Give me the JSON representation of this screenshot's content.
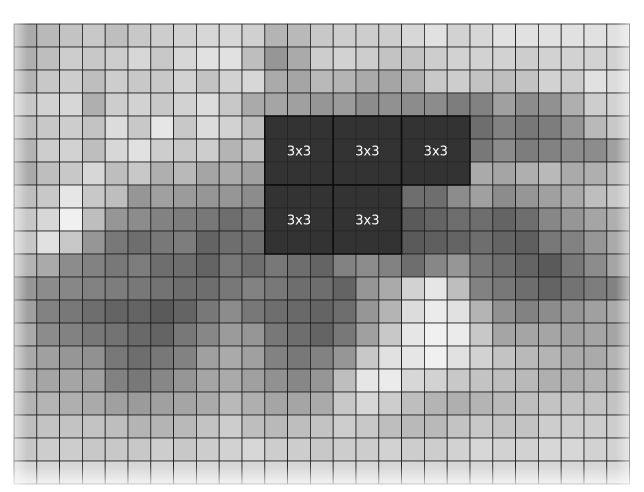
{
  "grid": {
    "rows": 20,
    "cols": 27,
    "line_color": "#1a1a1a",
    "highlight_color": "#333333",
    "values": [
      [
        170,
        185,
        195,
        200,
        190,
        200,
        205,
        210,
        215,
        215,
        208,
        180,
        185,
        200,
        205,
        205,
        205,
        215,
        225,
        210,
        215,
        225,
        225,
        225,
        225,
        225,
        225
      ],
      [
        175,
        190,
        205,
        200,
        205,
        215,
        200,
        215,
        225,
        225,
        190,
        150,
        170,
        205,
        210,
        205,
        195,
        195,
        205,
        210,
        210,
        210,
        205,
        210,
        210,
        210,
        210
      ],
      [
        180,
        200,
        205,
        190,
        205,
        200,
        200,
        210,
        195,
        210,
        215,
        170,
        165,
        185,
        180,
        170,
        165,
        175,
        200,
        205,
        195,
        190,
        195,
        210,
        205,
        225,
        220
      ],
      [
        200,
        210,
        215,
        175,
        205,
        210,
        200,
        210,
        220,
        200,
        170,
        165,
        160,
        150,
        155,
        140,
        145,
        140,
        140,
        125,
        130,
        160,
        140,
        145,
        175,
        205,
        210
      ],
      [
        190,
        200,
        205,
        195,
        220,
        200,
        230,
        200,
        220,
        210,
        190,
        150,
        160,
        165,
        165,
        140,
        145,
        140,
        130,
        120,
        110,
        130,
        120,
        125,
        150,
        185,
        200
      ],
      [
        180,
        205,
        210,
        190,
        215,
        225,
        205,
        200,
        205,
        180,
        190,
        150,
        150,
        140,
        130,
        140,
        150,
        130,
        120,
        130,
        120,
        140,
        125,
        130,
        140,
        140,
        160
      ],
      [
        170,
        190,
        200,
        215,
        190,
        200,
        175,
        185,
        165,
        170,
        160,
        120,
        130,
        140,
        130,
        120,
        130,
        140,
        150,
        180,
        170,
        165,
        175,
        185,
        170,
        175,
        190
      ],
      [
        190,
        200,
        230,
        200,
        190,
        150,
        160,
        155,
        150,
        150,
        140,
        120,
        125,
        110,
        120,
        120,
        110,
        110,
        110,
        140,
        160,
        140,
        150,
        160,
        170,
        190,
        200
      ],
      [
        200,
        215,
        240,
        190,
        150,
        140,
        130,
        125,
        120,
        110,
        120,
        110,
        110,
        100,
        110,
        100,
        100,
        90,
        100,
        110,
        110,
        100,
        110,
        135,
        150,
        165,
        175
      ],
      [
        200,
        225,
        200,
        150,
        120,
        110,
        120,
        125,
        100,
        110,
        110,
        100,
        95,
        100,
        100,
        110,
        95,
        90,
        95,
        100,
        110,
        100,
        95,
        120,
        130,
        150,
        170
      ],
      [
        180,
        170,
        140,
        130,
        120,
        125,
        110,
        110,
        100,
        120,
        110,
        120,
        110,
        100,
        130,
        140,
        130,
        110,
        135,
        150,
        120,
        110,
        100,
        90,
        120,
        140,
        165
      ],
      [
        150,
        140,
        135,
        130,
        125,
        120,
        115,
        110,
        110,
        120,
        130,
        120,
        110,
        110,
        100,
        150,
        170,
        210,
        230,
        190,
        130,
        120,
        110,
        100,
        115,
        125,
        130
      ],
      [
        160,
        130,
        120,
        110,
        100,
        100,
        90,
        100,
        120,
        140,
        120,
        110,
        105,
        100,
        110,
        150,
        180,
        220,
        235,
        225,
        180,
        145,
        130,
        140,
        150,
        160,
        170
      ],
      [
        170,
        140,
        130,
        120,
        115,
        105,
        100,
        120,
        135,
        155,
        150,
        120,
        110,
        100,
        120,
        160,
        200,
        230,
        240,
        235,
        200,
        165,
        165,
        165,
        160,
        165,
        165
      ],
      [
        170,
        160,
        150,
        145,
        120,
        110,
        120,
        130,
        160,
        170,
        160,
        130,
        120,
        130,
        150,
        200,
        225,
        230,
        240,
        225,
        210,
        195,
        185,
        180,
        170,
        170,
        180
      ],
      [
        175,
        165,
        165,
        160,
        130,
        120,
        135,
        150,
        165,
        170,
        160,
        145,
        135,
        150,
        190,
        230,
        235,
        215,
        210,
        200,
        195,
        190,
        185,
        175,
        175,
        180,
        180
      ],
      [
        180,
        180,
        175,
        170,
        160,
        155,
        160,
        165,
        170,
        185,
        175,
        165,
        165,
        170,
        200,
        215,
        205,
        190,
        180,
        175,
        180,
        185,
        190,
        195,
        195,
        195,
        195
      ],
      [
        190,
        195,
        195,
        195,
        190,
        180,
        180,
        185,
        195,
        205,
        190,
        185,
        190,
        195,
        205,
        200,
        190,
        185,
        185,
        195,
        200,
        195,
        195,
        205,
        205,
        205,
        205
      ],
      [
        200,
        205,
        205,
        200,
        200,
        200,
        205,
        200,
        205,
        210,
        215,
        205,
        205,
        200,
        205,
        205,
        210,
        205,
        205,
        210,
        215,
        210,
        210,
        215,
        215,
        210,
        210
      ],
      [
        215,
        215,
        215,
        215,
        215,
        215,
        215,
        215,
        215,
        215,
        215,
        215,
        215,
        215,
        215,
        215,
        215,
        215,
        215,
        215,
        215,
        215,
        215,
        215,
        215,
        215,
        215
      ]
    ]
  },
  "blocks": [
    {
      "row": 4,
      "col": 11,
      "size": 3,
      "label": "3x3"
    },
    {
      "row": 4,
      "col": 14,
      "size": 3,
      "label": "3x3"
    },
    {
      "row": 4,
      "col": 17,
      "size": 3,
      "label": "3x3"
    },
    {
      "row": 7,
      "col": 11,
      "size": 3,
      "label": "3x3"
    },
    {
      "row": 7,
      "col": 14,
      "size": 3,
      "label": "3x3"
    }
  ]
}
